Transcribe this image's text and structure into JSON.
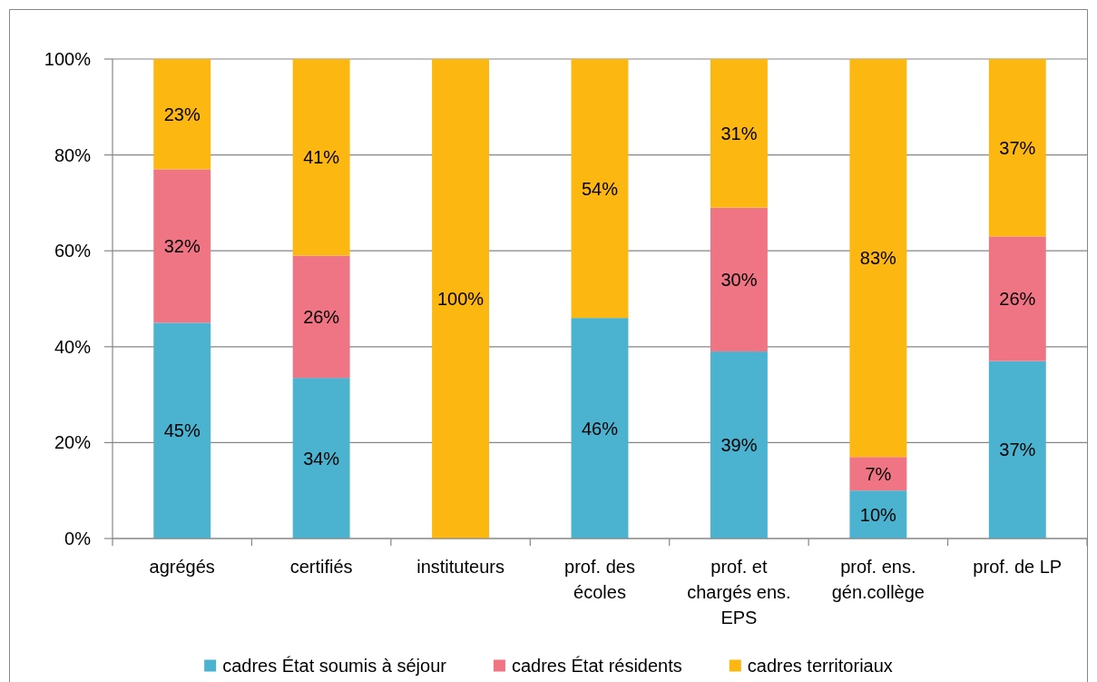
{
  "chart_data": {
    "type": "bar",
    "stacked": true,
    "categories": [
      "agrégés",
      "certifiés",
      "instituteurs",
      "prof. des écoles",
      "prof. et chargés ens. EPS",
      "prof. ens. gén.collège",
      "prof. de LP"
    ],
    "series": [
      {
        "name": "cadres État soumis à séjour",
        "color": "#4bb3d0",
        "values": [
          45,
          33.5,
          null,
          46,
          39,
          10,
          37
        ],
        "value_labels": [
          "45%",
          "34%",
          null,
          "46%",
          "39%",
          "10%",
          "37%"
        ]
      },
      {
        "name": "cadres État résidents",
        "color": "#f07584",
        "values": [
          32,
          25.5,
          null,
          null,
          30,
          7,
          26
        ],
        "value_labels": [
          "32%",
          "26%",
          null,
          null,
          "30%",
          "7%",
          "26%"
        ]
      },
      {
        "name": "cadres territoriaux",
        "color": "#fcb711",
        "values": [
          23,
          41,
          100,
          54,
          31,
          83,
          37
        ],
        "value_labels": [
          "23%",
          "41%",
          "100%",
          "54%",
          "31%",
          "83%",
          "37%"
        ]
      }
    ],
    "ylim": [
      0,
      100
    ],
    "yticks": [
      {
        "value": 0,
        "label": "0%"
      },
      {
        "value": 20,
        "label": "20%"
      },
      {
        "value": 40,
        "label": "40%"
      },
      {
        "value": 60,
        "label": "60%"
      },
      {
        "value": 80,
        "label": "80%"
      },
      {
        "value": 100,
        "label": "100%"
      }
    ],
    "grid": "y",
    "legend": "bottom"
  }
}
